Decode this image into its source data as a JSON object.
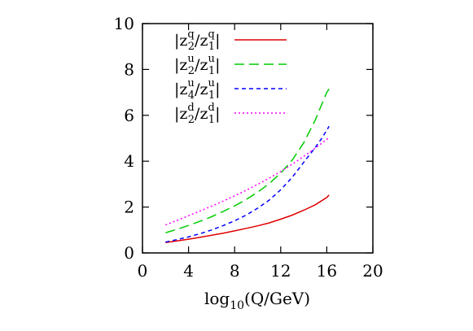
{
  "chart_data": {
    "type": "line",
    "title": "",
    "xlabel": {
      "main": "log",
      "sub": "10",
      "rest": "(Q/GeV)"
    },
    "ylabel": "",
    "xlim": [
      0,
      20
    ],
    "ylim": [
      0,
      10
    ],
    "xticks": [
      0,
      4,
      8,
      12,
      16,
      20
    ],
    "yticks": [
      0,
      2,
      4,
      6,
      8,
      10
    ],
    "grid": false,
    "legend_position": "top-left",
    "series": [
      {
        "name": {
          "a": "z",
          "a_sup": "q",
          "a_sub": "2",
          "b": "z",
          "b_sup": "q",
          "b_sub": "1"
        },
        "color": "#e00000",
        "dash": "solid",
        "x": [
          2,
          3,
          4,
          5,
          6,
          7,
          8,
          9,
          10,
          11,
          12,
          13,
          14,
          15,
          16,
          16.2
        ],
        "y": [
          0.45,
          0.52,
          0.6,
          0.68,
          0.77,
          0.86,
          0.96,
          1.07,
          1.18,
          1.31,
          1.47,
          1.65,
          1.86,
          2.1,
          2.42,
          2.53
        ]
      },
      {
        "name": {
          "a": "z",
          "a_sup": "u",
          "a_sub": "2",
          "b": "z",
          "b_sup": "u",
          "b_sub": "1"
        },
        "color": "#00cc00",
        "dash": "long",
        "x": [
          2,
          3,
          4,
          5,
          6,
          7,
          8,
          9,
          10,
          11,
          12,
          13,
          14,
          15,
          15.5,
          16,
          16.2
        ],
        "y": [
          0.88,
          1.03,
          1.2,
          1.38,
          1.58,
          1.81,
          2.05,
          2.33,
          2.65,
          3.02,
          3.48,
          4.05,
          4.8,
          5.8,
          6.4,
          7.0,
          7.15
        ]
      },
      {
        "name": {
          "a": "z",
          "a_sup": "u",
          "a_sub": "4",
          "b": "z",
          "b_sup": "u",
          "b_sub": "1"
        },
        "color": "#0000ff",
        "dash": "short",
        "x": [
          2,
          3,
          4,
          5,
          6,
          7,
          8,
          9,
          10,
          11,
          12,
          13,
          14,
          15,
          15.5,
          16,
          16.2
        ],
        "y": [
          0.47,
          0.58,
          0.7,
          0.84,
          1.0,
          1.19,
          1.4,
          1.65,
          1.95,
          2.3,
          2.75,
          3.3,
          3.95,
          4.6,
          4.95,
          5.35,
          5.52
        ]
      },
      {
        "name": {
          "a": "z",
          "a_sup": "d",
          "a_sub": "2",
          "b": "z",
          "b_sup": "d",
          "b_sub": "1"
        },
        "color": "#ff00ff",
        "dash": "dotted",
        "x": [
          2,
          3,
          4,
          5,
          6,
          7,
          8,
          9,
          10,
          11,
          12,
          13,
          14,
          15,
          16,
          16.2
        ],
        "y": [
          1.22,
          1.42,
          1.62,
          1.83,
          2.04,
          2.26,
          2.49,
          2.73,
          2.99,
          3.26,
          3.55,
          3.87,
          4.21,
          4.57,
          4.95,
          5.02
        ]
      }
    ]
  }
}
